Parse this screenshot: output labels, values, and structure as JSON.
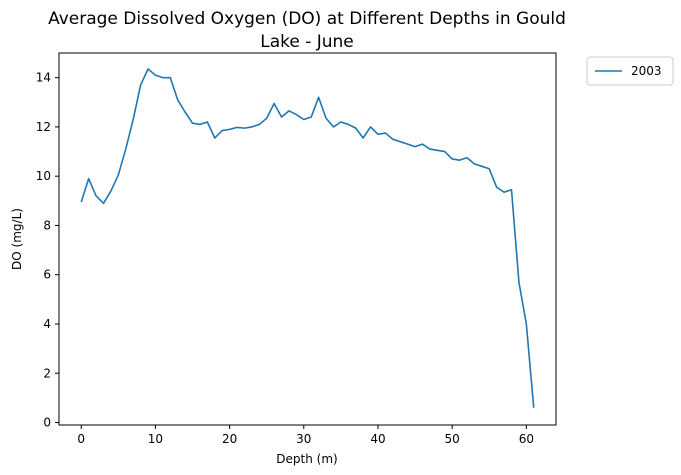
{
  "chart_data": {
    "type": "line",
    "title_lines": [
      "Average Dissolved Oxygen (DO) at Different Depths in Gould",
      "Lake - June"
    ],
    "xlabel": "Depth (m)",
    "ylabel": "DO (mg/L)",
    "xlim": [
      -3,
      64
    ],
    "ylim": [
      -0.1,
      15
    ],
    "xticks": [
      0,
      10,
      20,
      30,
      40,
      50,
      60
    ],
    "yticks": [
      0,
      2,
      4,
      6,
      8,
      10,
      12,
      14
    ],
    "grid": false,
    "legend_position": "outside-top-right",
    "series": [
      {
        "name": "2003",
        "color": "#1f77b4",
        "x": [
          0,
          1,
          2,
          3,
          4,
          5,
          6,
          7,
          8,
          9,
          10,
          11,
          12,
          13,
          14,
          15,
          16,
          17,
          18,
          19,
          20,
          21,
          22,
          23,
          24,
          25,
          26,
          27,
          28,
          29,
          30,
          31,
          32,
          33,
          34,
          35,
          36,
          37,
          38,
          39,
          40,
          41,
          42,
          43,
          44,
          45,
          46,
          47,
          48,
          49,
          50,
          51,
          52,
          53,
          54,
          55,
          56,
          57,
          58,
          59,
          60,
          61
        ],
        "y": [
          8.95,
          9.9,
          9.2,
          8.9,
          9.4,
          10.05,
          11.1,
          12.3,
          13.7,
          14.35,
          14.1,
          14.0,
          14.0,
          13.1,
          12.6,
          12.15,
          12.1,
          12.2,
          11.55,
          11.85,
          11.9,
          11.98,
          11.95,
          12.0,
          12.1,
          12.35,
          12.95,
          12.4,
          12.65,
          12.5,
          12.3,
          12.4,
          13.2,
          12.35,
          12.0,
          12.2,
          12.1,
          11.95,
          11.55,
          12.0,
          11.7,
          11.75,
          11.5,
          11.4,
          11.3,
          11.2,
          11.3,
          11.1,
          11.05,
          11.0,
          10.7,
          10.65,
          10.75,
          10.5,
          10.4,
          10.3,
          9.55,
          9.35,
          9.45,
          5.7,
          4.0,
          0.6
        ]
      }
    ]
  }
}
